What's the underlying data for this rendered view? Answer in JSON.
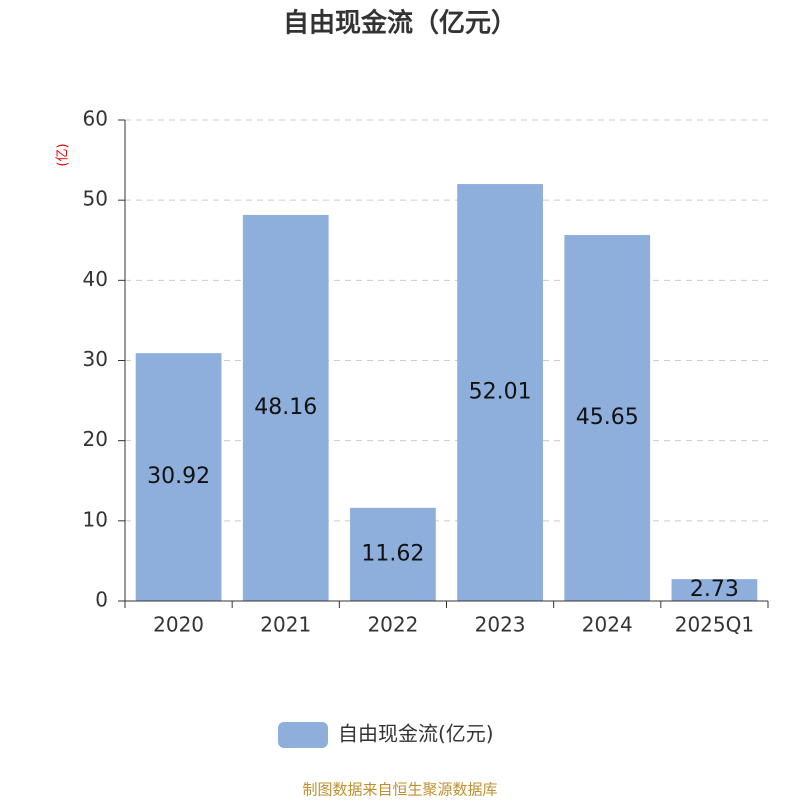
{
  "chart_data": {
    "type": "bar",
    "title": "自由现金流（亿元）",
    "y_label": "(亿)",
    "categories": [
      "2020",
      "2021",
      "2022",
      "2023",
      "2024",
      "2025Q1"
    ],
    "series": [
      {
        "name": "自由现金流(亿元)",
        "color": "#8eaedb",
        "values": [
          30.92,
          48.16,
          11.62,
          52.01,
          45.65,
          2.73
        ]
      }
    ],
    "ylim": [
      0,
      60
    ],
    "yticks": [
      0,
      10,
      20,
      30,
      40,
      50,
      60
    ],
    "grid": true,
    "source": "制图数据来自恒生聚源数据库"
  }
}
